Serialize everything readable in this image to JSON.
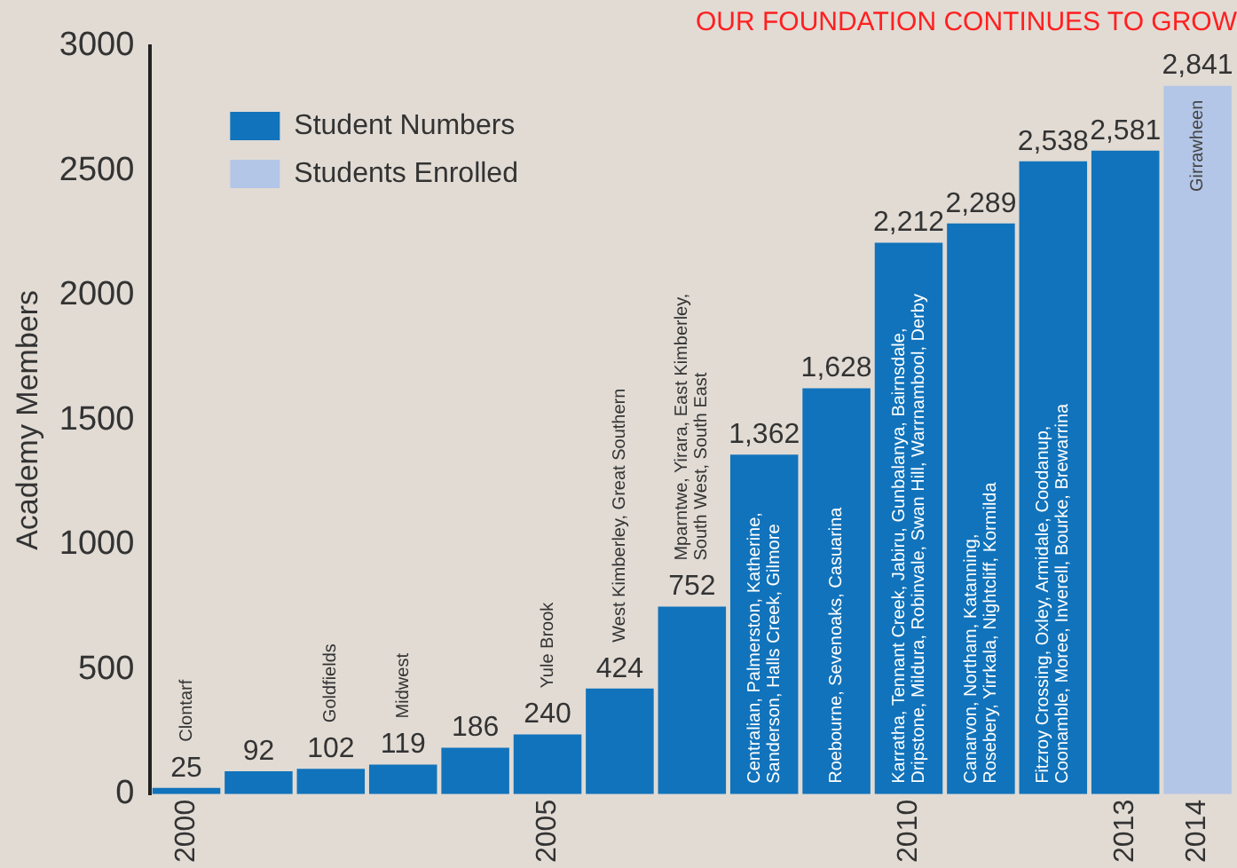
{
  "chart_data": {
    "type": "bar",
    "title": "OUR FOUNDATION CONTINUES TO GROW",
    "ylabel": "Academy Members",
    "categories": [
      "2000",
      null,
      null,
      null,
      null,
      "2005",
      null,
      null,
      null,
      null,
      "2010",
      null,
      null,
      "2013",
      "2014"
    ],
    "series": [
      {
        "name": "Student Numbers",
        "color": "#1173bb",
        "values": [
          25,
          92,
          102,
          119,
          186,
          240,
          424,
          752,
          1362,
          1628,
          2212,
          2289,
          2538,
          2581,
          null
        ],
        "value_labels": [
          "25",
          "92",
          "102",
          "119",
          "186",
          "240",
          "424",
          "752",
          "1,362",
          "1,628",
          "2,212",
          "2,289",
          "2,538",
          "2,581",
          null
        ]
      },
      {
        "name": "Students Enrolled",
        "color": "#b4c6e7",
        "values": [
          null,
          null,
          null,
          null,
          null,
          null,
          null,
          null,
          null,
          null,
          null,
          null,
          null,
          null,
          2841
        ],
        "value_labels": [
          null,
          null,
          null,
          null,
          null,
          null,
          null,
          null,
          null,
          null,
          null,
          null,
          null,
          null,
          "2,841"
        ]
      }
    ],
    "annotations": [
      "Clontarf",
      null,
      "Goldfields",
      "Midwest",
      null,
      "Yule Brook",
      "West Kimberley, Great Southern",
      "Mparntwe, Yirara, East Kimberley,\nSouth West, South East",
      "Centralian, Palmerston, Katherine,\nSanderson, Halls Creek, Gilmore",
      "Roebourne, Sevenoaks, Casuarina",
      "Karratha, Tennant Creek, Jabiru, Gunbalanya, Bairnsdale,\nDripstone, Mildura, Robinvale, Swan Hill, Warrnambool, Derby",
      "Canarvon, Northam, Katanning,\nRosebery, Yirrkala, Nightcliff, Kormilda",
      "Fitzroy Crossing, Oxley, Armidale, Coodanup,\nCoonamble, Moree, Inverell, Bourke, Brewarrina",
      null,
      "Girrawheen"
    ],
    "ylim": [
      0,
      3000
    ],
    "yticks": [
      0,
      500,
      1000,
      1500,
      2000,
      2500,
      3000
    ],
    "grid": false,
    "legend": "top left"
  }
}
